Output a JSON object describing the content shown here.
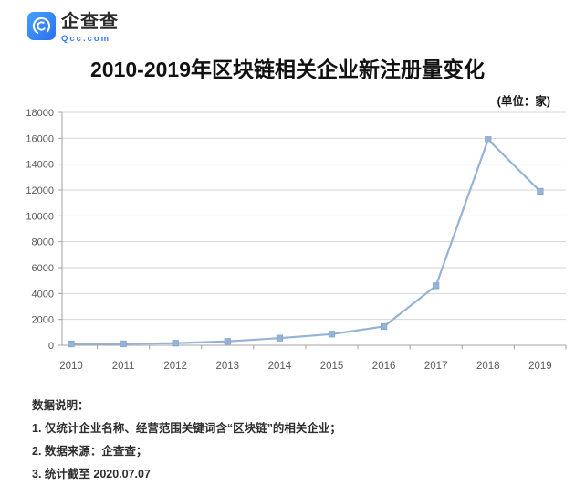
{
  "brand": {
    "name": "企查查",
    "domain": "Qcc.com",
    "logo_color_top": "#41a3f6",
    "logo_color_bottom": "#2e6ef2",
    "domain_color": "#3479f6"
  },
  "title": "2010-2019年区块链相关企业新注册量变化",
  "unit_label": "(单位：家)",
  "notes": {
    "heading": "数据说明：",
    "items": [
      "1. 仅统计企业名称、经营范围关键词含“区块链”的相关企业；",
      "2. 数据来源：企查查；",
      "3. 统计截至 2020.07.07"
    ]
  },
  "chart_data": {
    "type": "line",
    "title": "2010-2019年区块链相关企业新注册量变化",
    "categories": [
      "2010",
      "2011",
      "2012",
      "2013",
      "2014",
      "2015",
      "2016",
      "2017",
      "2018",
      "2019"
    ],
    "values": [
      100,
      110,
      160,
      300,
      550,
      860,
      1450,
      4600,
      15900,
      11900
    ],
    "xlabel": "",
    "ylabel": "",
    "unit": "家",
    "ylim": [
      0,
      18000
    ],
    "ytick_interval": 2000,
    "grid": true,
    "legend": "none",
    "marker": "square",
    "line_color": "#95b3d7",
    "marker_edge_color": "#7f9fc6",
    "grid_color": "#d6d6d6",
    "axis_color": "#a3a3a3",
    "tick_label_color": "#595959"
  }
}
